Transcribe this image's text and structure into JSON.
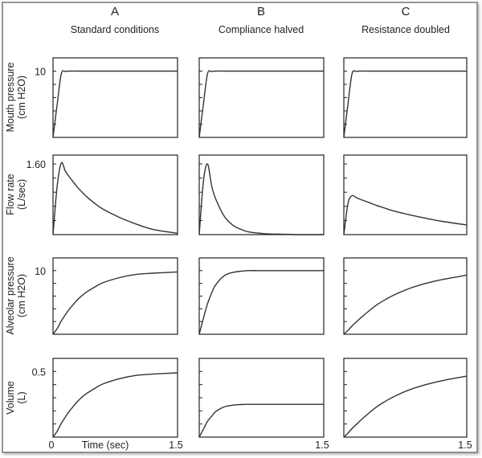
{
  "chart_data": {
    "type": "line",
    "columns": [
      {
        "letter": "A",
        "title": "Standard conditions"
      },
      {
        "letter": "B",
        "title": "Compliance halved"
      },
      {
        "letter": "C",
        "title": "Resistance doubled"
      }
    ],
    "rows": [
      {
        "ylabel": [
          "Mouth pressure",
          "(cm H2O)"
        ],
        "ylim": [
          0,
          12
        ],
        "tick_label": "10",
        "tick_value": 10
      },
      {
        "ylabel": [
          "Flow rate",
          "(L/sec)"
        ],
        "ylim": [
          0,
          1.8
        ],
        "tick_label": "1.60",
        "tick_value": 1.6
      },
      {
        "ylabel": [
          "Alveolar pressure",
          "(cm H2O)"
        ],
        "ylim": [
          0,
          12
        ],
        "tick_label": "10",
        "tick_value": 10
      },
      {
        "ylabel": [
          "Volume",
          "(L)"
        ],
        "ylim": [
          0,
          0.6
        ],
        "tick_label": "0.5",
        "tick_value": 0.5
      }
    ],
    "xlim": [
      0,
      1.5
    ],
    "xlabel": "Time (sec)",
    "x_tick_labels": {
      "start": "0",
      "end": "1.5"
    },
    "x": [
      0,
      0.05,
      0.1,
      0.15,
      0.2,
      0.3,
      0.4,
      0.5,
      0.6,
      0.8,
      1.0,
      1.2,
      1.5
    ],
    "series": [
      {
        "row": 0,
        "col": 0,
        "values": [
          0,
          5,
          9.6,
          9.95,
          10,
          10,
          10,
          10,
          10,
          10,
          10,
          10,
          10
        ]
      },
      {
        "row": 0,
        "col": 1,
        "values": [
          0,
          5,
          9.6,
          9.95,
          10,
          10,
          10,
          10,
          10,
          10,
          10,
          10,
          10
        ]
      },
      {
        "row": 0,
        "col": 2,
        "values": [
          0,
          5,
          9.6,
          9.95,
          10,
          10,
          10,
          10,
          10,
          10,
          10,
          10,
          10
        ]
      },
      {
        "row": 1,
        "col": 0,
        "values": [
          0,
          1.1,
          1.62,
          1.43,
          1.3,
          1.06,
          0.87,
          0.71,
          0.58,
          0.39,
          0.24,
          0.12,
          0.03
        ]
      },
      {
        "row": 1,
        "col": 1,
        "values": [
          0,
          1.2,
          1.6,
          1.1,
          0.8,
          0.42,
          0.22,
          0.12,
          0.06,
          0.02,
          0.01,
          0,
          0
        ]
      },
      {
        "row": 1,
        "col": 2,
        "values": [
          0,
          0.7,
          0.88,
          0.84,
          0.8,
          0.73,
          0.66,
          0.6,
          0.54,
          0.45,
          0.37,
          0.3,
          0.22
        ]
      },
      {
        "row": 2,
        "col": 0,
        "values": [
          0,
          0.9,
          2.1,
          3.1,
          4.0,
          5.5,
          6.6,
          7.4,
          8.1,
          8.9,
          9.4,
          9.6,
          9.8
        ]
      },
      {
        "row": 2,
        "col": 1,
        "values": [
          0,
          2.5,
          4.8,
          6.5,
          7.8,
          9.2,
          9.7,
          9.9,
          10,
          10,
          10,
          10,
          10
        ]
      },
      {
        "row": 2,
        "col": 2,
        "values": [
          0,
          0.6,
          1.3,
          1.9,
          2.5,
          3.6,
          4.6,
          5.4,
          6.1,
          7.2,
          8.0,
          8.6,
          9.3
        ]
      },
      {
        "row": 3,
        "col": 0,
        "values": [
          0,
          0.045,
          0.105,
          0.155,
          0.2,
          0.275,
          0.33,
          0.37,
          0.405,
          0.445,
          0.47,
          0.48,
          0.49
        ]
      },
      {
        "row": 3,
        "col": 1,
        "values": [
          0,
          0.06,
          0.12,
          0.16,
          0.195,
          0.23,
          0.243,
          0.248,
          0.25,
          0.25,
          0.25,
          0.25,
          0.25
        ]
      },
      {
        "row": 3,
        "col": 2,
        "values": [
          0,
          0.03,
          0.065,
          0.095,
          0.125,
          0.18,
          0.23,
          0.27,
          0.305,
          0.36,
          0.4,
          0.43,
          0.465
        ]
      }
    ],
    "grid": false,
    "colors": {
      "line": "#333333",
      "frame": "#222222"
    }
  }
}
